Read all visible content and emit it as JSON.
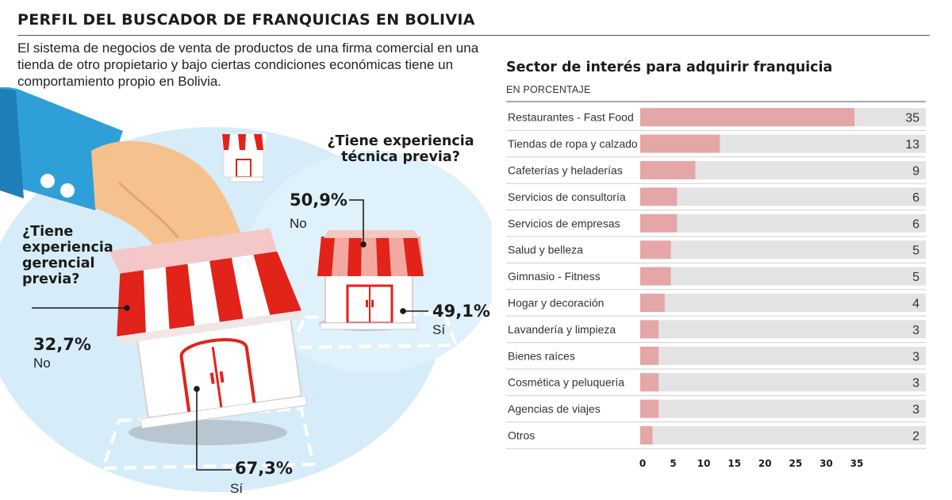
{
  "header": {
    "title": "PERFIL DEL BUSCADOR DE FRANQUICIAS EN BOLIVIA",
    "intro": "El sistema de negocios de venta de productos de una firma comercial en una tienda de otro propietario y bajo ciertas condiciones económicas tiene un comportamiento propio en Bolivia."
  },
  "infographic": {
    "gerencial": {
      "question": "¿Tiene experiencia gerencial previa?",
      "no_pct": "32,7%",
      "no_label": "No",
      "si_pct": "67,3%",
      "si_label": "Sí"
    },
    "tecnica": {
      "question": "¿Tiene experiencia técnica previa?",
      "no_pct": "50,9%",
      "no_label": "No",
      "si_pct": "49,1%",
      "si_label": "Sí"
    },
    "colors": {
      "awning_red": "#e2231a",
      "sky_blue": "#d3ecf9",
      "sleeve_blue": "#2f9fd8",
      "skin": "#f5c28f"
    },
    "icons": [
      "hand-icon",
      "shop-icon"
    ]
  },
  "chart_data": {
    "type": "bar",
    "orientation": "horizontal",
    "title": "Sector de interés para adquirir franquicia",
    "subtitle": "EN PORCENTAJE",
    "categories": [
      "Restaurantes - Fast Food",
      "Tiendas de ropa y calzado",
      "Cafeterías y heladerías",
      "Servicios de consultoría",
      "Servicios de empresas",
      "Salud y belleza",
      "Gimnasio - Fitness",
      "Hogar y decoración",
      "Lavandería y limpieza",
      "Bienes raíces",
      "Cosmética y peluquería",
      "Agencias de viajes",
      "Otros"
    ],
    "values": [
      35,
      13,
      9,
      6,
      6,
      5,
      5,
      4,
      3,
      3,
      3,
      3,
      2
    ],
    "x_ticks": [
      0,
      5,
      10,
      15,
      20,
      25,
      30,
      35
    ],
    "xlim": [
      0,
      35
    ],
    "grid": false,
    "colors": {
      "bar": "#e4a6a6",
      "track": "#e3e3e3",
      "text": "#333333"
    }
  }
}
